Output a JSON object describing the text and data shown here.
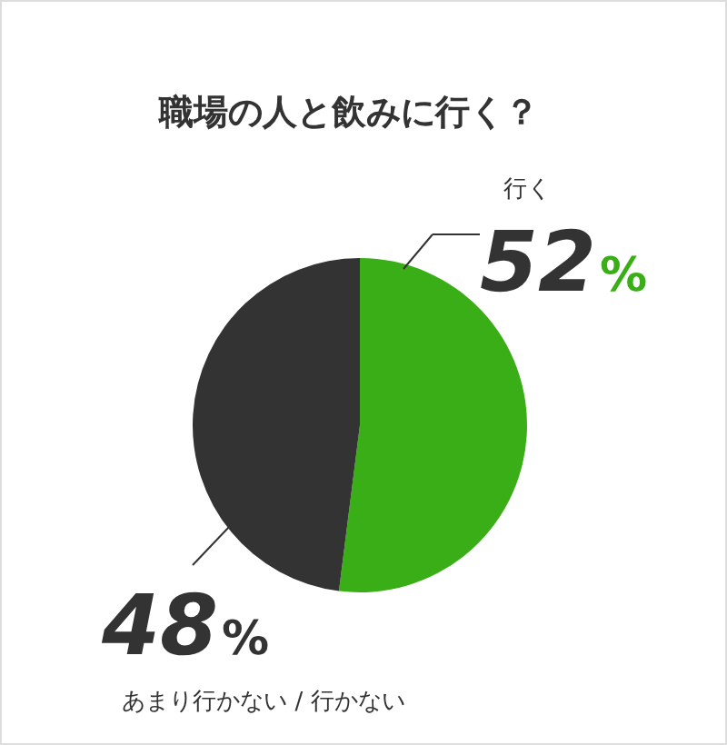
{
  "chart_data": {
    "type": "pie",
    "title": "職場の人と飲みに行く？",
    "categories": [
      "行く",
      "あまり行かない / 行かない"
    ],
    "values": [
      52,
      48
    ],
    "colors": [
      "#3aae17",
      "#333333"
    ],
    "value_labels": [
      "52%",
      "48%"
    ]
  }
}
